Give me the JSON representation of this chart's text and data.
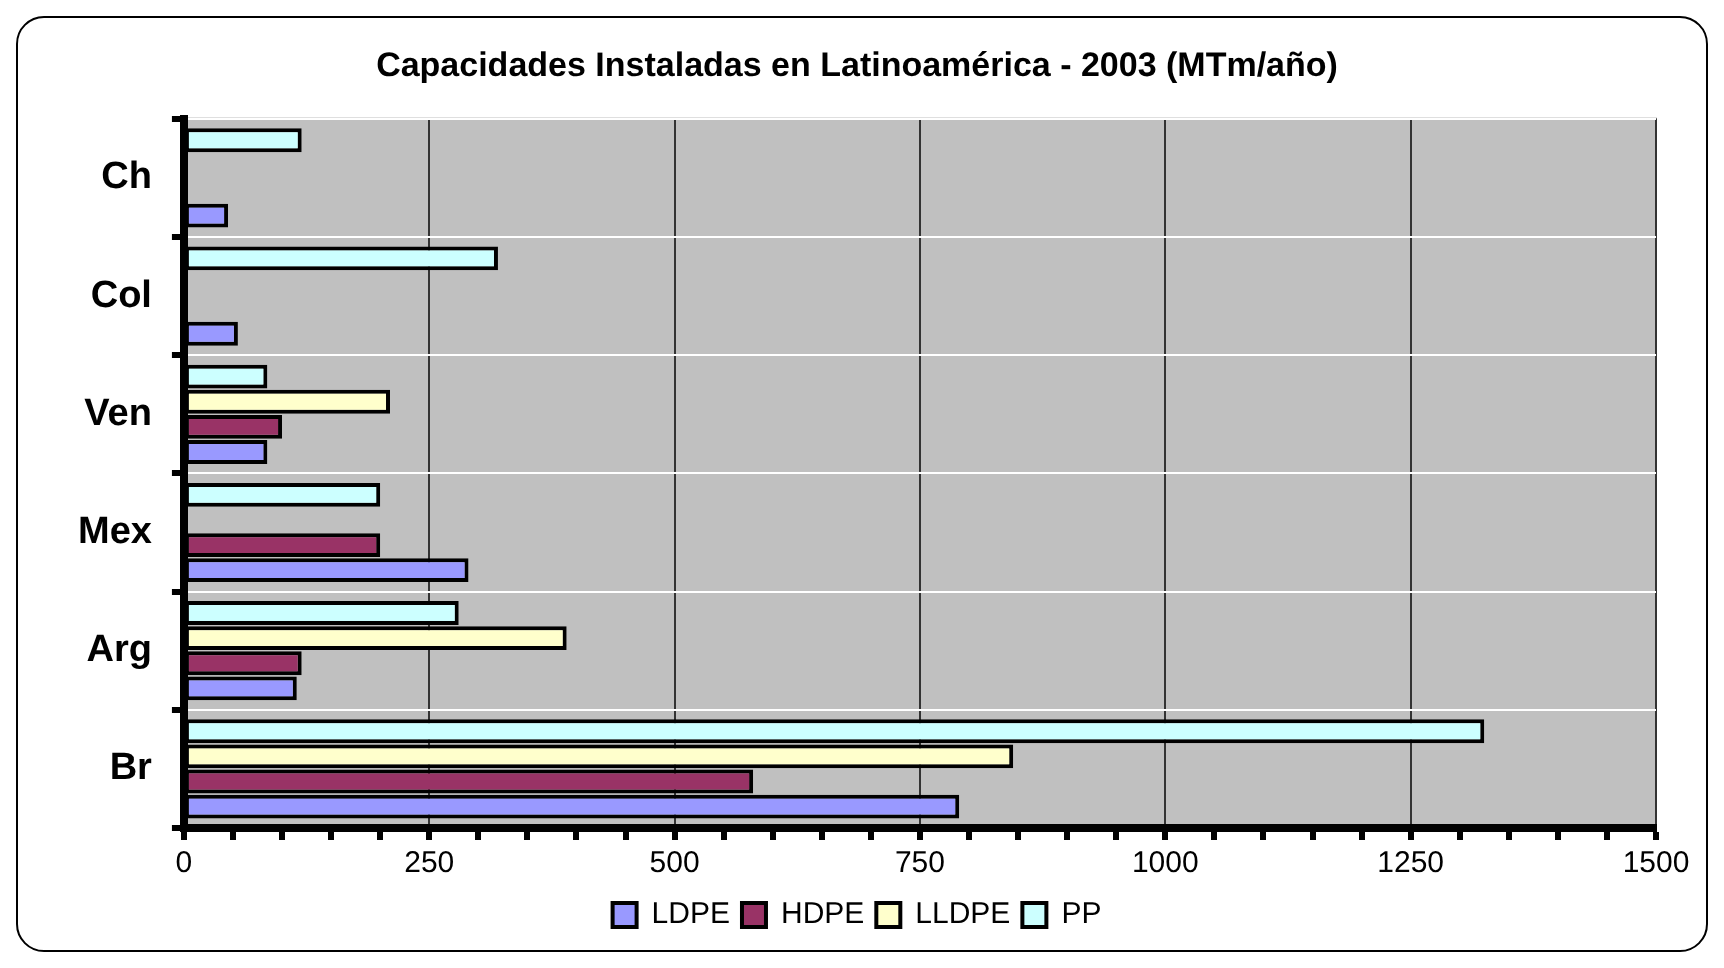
{
  "chart_data": {
    "type": "bar",
    "orientation": "horizontal",
    "title": "Capacidades Instaladas en Latinoamérica - 2003 (MTm/año)",
    "categories": [
      "Ch",
      "Col",
      "Ven",
      "Mex",
      "Arg",
      "Br"
    ],
    "series": [
      {
        "name": "LDPE",
        "color": "#9999ff",
        "values": [
          45,
          55,
          85,
          290,
          115,
          790
        ]
      },
      {
        "name": "HDPE",
        "color": "#993366",
        "values": [
          null,
          null,
          100,
          200,
          120,
          580
        ]
      },
      {
        "name": "LLDPE",
        "color": "#ffffcc",
        "values": [
          null,
          null,
          210,
          null,
          390,
          845
        ]
      },
      {
        "name": "PP",
        "color": "#ccffff",
        "values": [
          120,
          320,
          85,
          200,
          280,
          1325
        ]
      }
    ],
    "xlim": [
      0,
      1500
    ],
    "xticks": [
      0,
      {
        "value": 50,
        "label": null
      },
      {
        "value": 100,
        "label": null
      },
      {
        "value": 150,
        "label": null
      },
      {
        "value": 200,
        "label": null
      },
      250,
      {
        "value": 300,
        "label": null
      },
      {
        "value": 350,
        "label": null
      },
      {
        "value": 400,
        "label": null
      },
      {
        "value": 450,
        "label": null
      },
      500,
      {
        "value": 550,
        "label": null
      },
      {
        "value": 600,
        "label": null
      },
      {
        "value": 650,
        "label": null
      },
      {
        "value": 700,
        "label": null
      },
      750,
      {
        "value": 800,
        "label": null
      },
      {
        "value": 850,
        "label": null
      },
      {
        "value": 900,
        "label": null
      },
      {
        "value": 950,
        "label": null
      },
      1000,
      {
        "value": 1050,
        "label": null
      },
      {
        "value": 1100,
        "label": null
      },
      {
        "value": 1150,
        "label": null
      },
      {
        "value": 1200,
        "label": null
      },
      1250,
      {
        "value": 1300,
        "label": null
      },
      {
        "value": 1350,
        "label": null
      },
      {
        "value": 1400,
        "label": null
      },
      {
        "value": 1450,
        "label": null
      },
      1500
    ],
    "grid": true,
    "legend": "bottom"
  }
}
